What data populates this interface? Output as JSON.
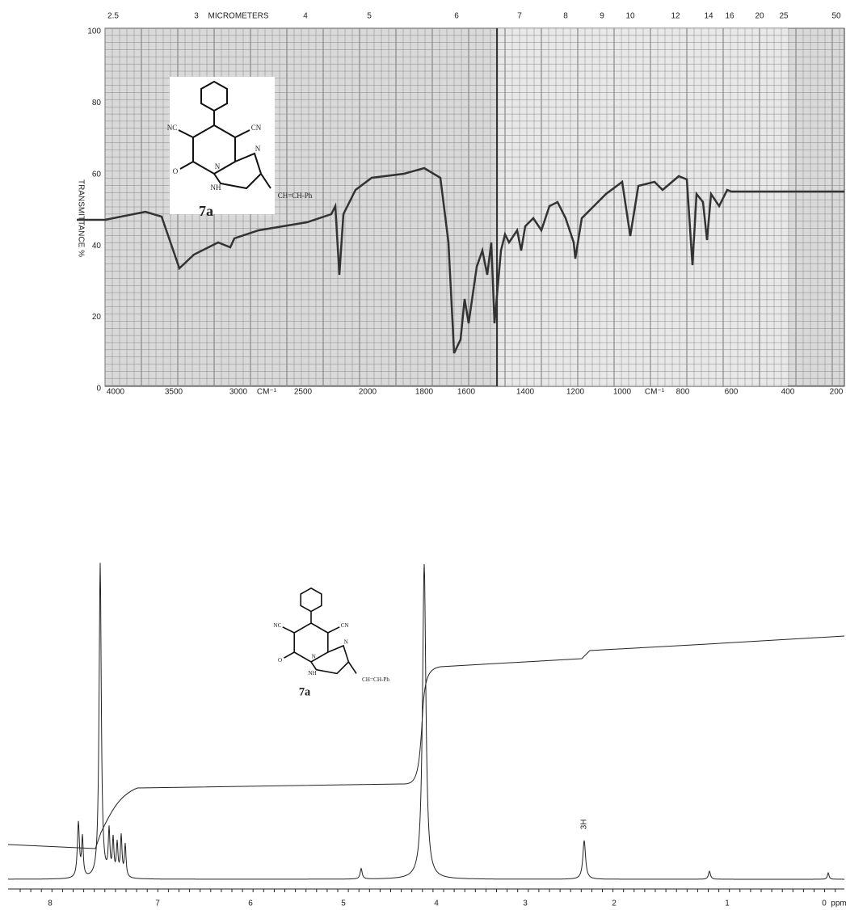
{
  "ir": {
    "micrometer_ticks": [
      "2.5",
      "3",
      "MICROMETERS",
      "4",
      "5",
      "6",
      "7",
      "8",
      "9",
      "10",
      "12",
      "14",
      "16",
      "20",
      "25",
      "50"
    ],
    "y_ticks": [
      "100",
      "80",
      "60",
      "40",
      "20",
      "0"
    ],
    "y_label": "TRANSMITTANCE %",
    "wavenumber_ticks": [
      "4000",
      "3500",
      "3000",
      "CM⁻¹",
      "2500",
      "2000",
      "1800",
      "1600",
      "1400",
      "1200",
      "1000",
      "CM⁻¹",
      "800",
      "600",
      "400",
      "200"
    ]
  },
  "structure": {
    "substituents": [
      "NC",
      "CN",
      "O",
      "N",
      "NH",
      "N",
      "CH=CH-Ph"
    ],
    "label": "7a"
  },
  "nmr": {
    "x_ticks": [
      "8",
      "7",
      "6",
      "5",
      "4",
      "3",
      "2",
      "1",
      "0",
      "ppm"
    ],
    "peak_label": "3H"
  }
}
